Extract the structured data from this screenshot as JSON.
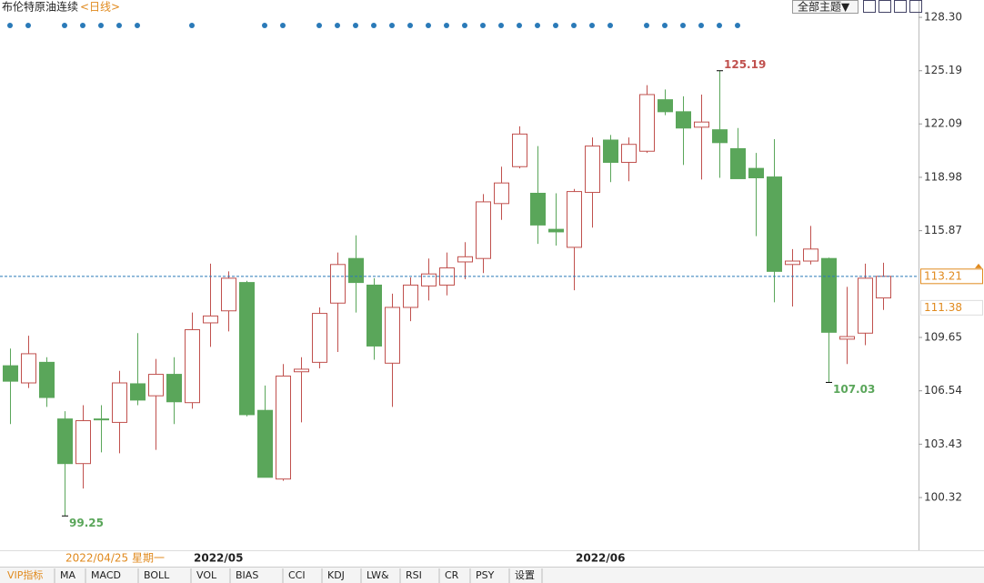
{
  "chart_data": {
    "type": "candlestick",
    "title": "布伦特原油连续",
    "subtitle": "<日线>",
    "theme_button": "全部主题▼",
    "categories": [
      null,
      null,
      null,
      null,
      null,
      null,
      null,
      null,
      null,
      null,
      "2022/05",
      null,
      null,
      null,
      null,
      null,
      null,
      null,
      null,
      null,
      null,
      null,
      null,
      null,
      null,
      null,
      null,
      null,
      null,
      null,
      null,
      "2022/06",
      null,
      null,
      null,
      null,
      null,
      null,
      null,
      null,
      null,
      null,
      null,
      null,
      null,
      null,
      null,
      null,
      null
    ],
    "open": [
      108.0,
      107.0,
      108.2,
      104.9,
      102.3,
      104.9,
      104.7,
      106.95,
      106.25,
      107.5,
      105.85,
      110.5,
      111.2,
      112.85,
      105.4,
      101.4,
      107.65,
      108.2,
      111.65,
      114.25,
      112.7,
      108.15,
      111.4,
      112.65,
      112.7,
      114.05,
      114.25,
      117.45,
      119.6,
      118.05,
      115.95,
      114.9,
      118.1,
      121.15,
      119.85,
      120.5,
      123.5,
      122.8,
      121.9,
      121.75,
      120.65,
      119.5,
      119.0,
      113.9,
      114.1,
      114.25,
      109.55,
      109.9,
      111.95
    ],
    "high": [
      109.0,
      109.75,
      108.5,
      105.35,
      105.7,
      105.7,
      107.7,
      109.9,
      108.4,
      108.5,
      111.1,
      113.95,
      113.5,
      112.95,
      106.85,
      108.1,
      108.5,
      111.4,
      114.6,
      115.6,
      113.1,
      112.2,
      113.15,
      114.25,
      114.6,
      115.2,
      118.0,
      119.6,
      121.95,
      120.8,
      118.05,
      118.3,
      121.3,
      121.45,
      121.3,
      124.35,
      124.1,
      123.7,
      123.8,
      125.19,
      121.85,
      120.4,
      121.2,
      114.8,
      116.15,
      114.3,
      112.6,
      113.95,
      114.0
    ],
    "low": [
      104.6,
      106.7,
      105.6,
      99.25,
      100.85,
      102.95,
      102.9,
      105.7,
      103.1,
      104.6,
      105.5,
      109.1,
      110.0,
      105.05,
      101.5,
      101.3,
      104.7,
      107.85,
      108.8,
      111.1,
      108.35,
      105.6,
      110.6,
      111.8,
      112.1,
      113.05,
      113.4,
      116.5,
      119.5,
      115.1,
      115.0,
      112.4,
      116.05,
      118.7,
      118.75,
      120.4,
      122.6,
      119.7,
      118.85,
      118.95,
      118.9,
      115.55,
      111.7,
      111.45,
      113.9,
      107.03,
      108.1,
      109.2,
      111.25
    ],
    "close": [
      107.1,
      108.7,
      106.15,
      102.3,
      104.8,
      104.85,
      107.0,
      106.0,
      107.5,
      105.9,
      110.1,
      110.9,
      113.1,
      105.15,
      101.5,
      107.4,
      107.8,
      111.05,
      113.9,
      112.85,
      109.15,
      111.4,
      112.7,
      113.35,
      113.7,
      114.35,
      117.55,
      118.65,
      121.5,
      116.2,
      115.8,
      118.15,
      120.8,
      119.85,
      120.9,
      123.8,
      122.8,
      121.85,
      122.2,
      121.0,
      118.9,
      118.95,
      113.5,
      114.1,
      114.8,
      109.95,
      109.7,
      113.1,
      113.21
    ],
    "up_color": "#c0504d",
    "down_color": "#5aa65a",
    "last_color": "#e08a1e",
    "ylim": [
      97.25,
      129.31
    ],
    "yticks": [
      {
        "value": 128.3,
        "label": "128.30"
      },
      125.19,
      122.09,
      118.98,
      115.87,
      109.65,
      106.54,
      103.43,
      100.32
    ],
    "cursor_price": 111.38,
    "cursor_date": "2022/04/25 星期一",
    "indicator_tabs": [
      "VIP指标",
      "MA",
      "MACD",
      "BOLL",
      "VOL",
      "BIAS",
      "CCI",
      "KDJ",
      "LW&",
      "RSI",
      "CR",
      "PSY",
      "设置"
    ]
  }
}
